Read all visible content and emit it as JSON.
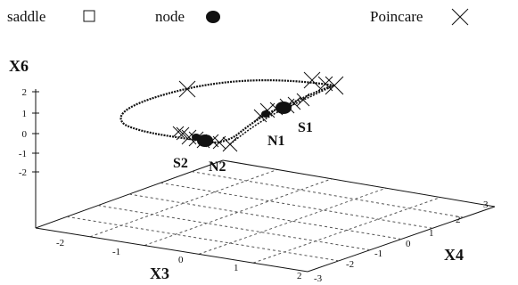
{
  "legend": {
    "saddle": {
      "label": "saddle",
      "marker": "open-square-icon"
    },
    "node": {
      "label": "node",
      "marker": "filled-circle-icon"
    },
    "poincare": {
      "label": "Poincare",
      "marker": "x-cross-icon"
    }
  },
  "axes": {
    "z_title": "X6",
    "x_title": "X3",
    "y_title": "X4",
    "z_ticks": [
      "2",
      "1",
      "0",
      "-1",
      "-2"
    ],
    "x_ticks": [
      "-2",
      "-1",
      "0",
      "1",
      "2"
    ],
    "y_ticks": [
      "-3",
      "-2",
      "-1",
      "0",
      "1",
      "2",
      "3"
    ]
  },
  "annotations": {
    "s1": "S1",
    "n1": "N1",
    "s2": "S2",
    "n2": "N2"
  },
  "colors": {
    "ink": "#111111",
    "grid": "#555555"
  }
}
